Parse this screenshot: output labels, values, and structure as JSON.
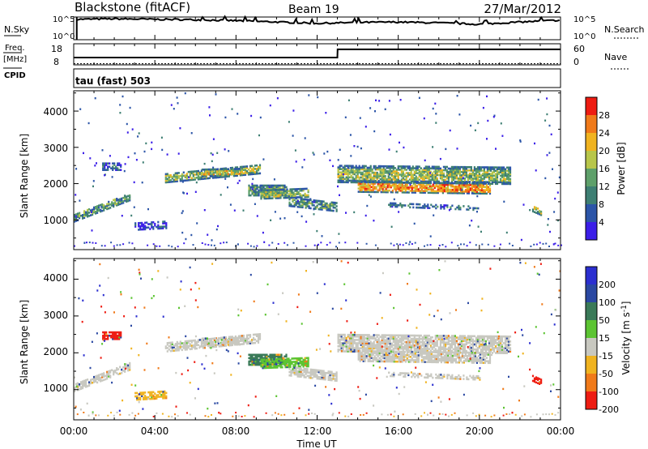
{
  "header": {
    "station": "Blackstone (fitACF)",
    "beam": "Beam 19",
    "date": "27/Mar/2012"
  },
  "side_labels": {
    "nsky": "N.Sky",
    "nsearch": "N.Search",
    "freq": "Freq.",
    "freq_unit": "[MHz]",
    "cpid": "CPID",
    "nave": "Nave",
    "cpid_value": "tau (fast) 503"
  },
  "axes": {
    "slant_range": "Slant Range [km]",
    "time": "Time UT",
    "time_ticks": [
      "00:00",
      "04:00",
      "08:00",
      "12:00",
      "16:00",
      "20:00",
      "00:00"
    ],
    "range_ticks": [
      "1000",
      "2000",
      "3000",
      "4000"
    ],
    "noise_ticks_left": [
      "10^5",
      "10^0"
    ],
    "noise_ticks_right": [
      "10^5",
      "10^0"
    ],
    "freq_ticks": [
      "18",
      "8"
    ],
    "nave_ticks": [
      "60",
      "0"
    ]
  },
  "colorbars": {
    "power": {
      "label": "Power [dB]",
      "ticks": [
        "28",
        "24",
        "20",
        "16",
        "12",
        "8",
        "4"
      ]
    },
    "velocity": {
      "label_main": "Velocity [m s",
      "label_sup": "-1",
      "label_end": "]",
      "ticks": [
        "200",
        "100",
        "50",
        "15",
        "-15",
        "-50",
        "-100",
        "-200"
      ]
    }
  },
  "chart_data": [
    {
      "type": "line",
      "title": "N.Sky / N.Search",
      "x_range_hours": [
        0,
        24
      ],
      "ylim_log10": [
        0,
        5
      ],
      "series": [
        {
          "name": "N.Sky",
          "x": [
            0.15,
            2,
            4,
            6,
            8,
            10,
            12,
            14,
            16,
            18,
            20,
            22,
            24
          ],
          "y": [
            4.5,
            4.6,
            4.5,
            4.4,
            4.2,
            3.9,
            3.6,
            3.8,
            3.9,
            3.7,
            3.4,
            3.9,
            4.3
          ]
        }
      ]
    },
    {
      "type": "line",
      "title": "Freq. / Nave",
      "x_range_hours": [
        0,
        24
      ],
      "series": [
        {
          "name": "Freq.",
          "x": [
            0,
            13,
            13.01,
            24
          ],
          "y": [
            10.2,
            10.2,
            16.0,
            16.0
          ]
        },
        {
          "name": "Nave",
          "x": [
            0,
            24
          ],
          "y": [
            1,
            1
          ]
        }
      ]
    },
    {
      "type": "heatmap",
      "title": "Power [dB]",
      "xlabel": "",
      "ylabel": "Slant Range [km]",
      "x_range_hours": [
        0,
        24
      ],
      "ylim": [
        180,
        4560
      ],
      "value_range": [
        0,
        30
      ]
    },
    {
      "type": "heatmap",
      "title": "Velocity [m s-1]",
      "xlabel": "Time UT",
      "ylabel": "Slant Range [km]",
      "x_range_hours": [
        0,
        24
      ],
      "ylim": [
        180,
        4560
      ],
      "value_range": [
        -250,
        250
      ]
    }
  ]
}
